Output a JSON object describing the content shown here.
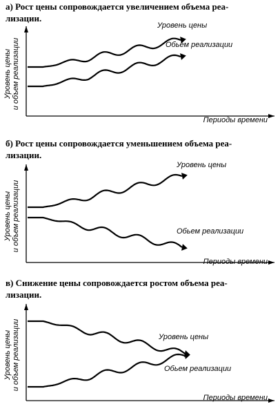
{
  "panels": [
    {
      "caption": [
        "а) Рост цены сопровождается увеличением объема реа-",
        "лизации."
      ],
      "y_axis_label": [
        "Уровень цены",
        "и объем реализации"
      ],
      "x_axis_label": "Периоды времени",
      "curves": [
        {
          "label": "Уровень цены"
        },
        {
          "label": "Обьем реализации"
        }
      ]
    },
    {
      "caption": [
        "б) Рост цены сопровождается уменьшением объема реа-",
        "лизации."
      ],
      "y_axis_label": [
        "Уровень цены",
        "и объем реализации"
      ],
      "x_axis_label": "Периоды времени",
      "curves": [
        {
          "label": "Уровень цены"
        },
        {
          "label": "Обьем реализации"
        }
      ]
    },
    {
      "caption": [
        "в) Снижение цены сопровождается ростом объема реа-",
        "лизации."
      ],
      "y_axis_label": [
        "Уровень цены",
        "и объем реализации"
      ],
      "x_axis_label": "Периоды времени",
      "curves": [
        {
          "label": "Уровень цены"
        },
        {
          "label": "Обьем реализации"
        }
      ]
    }
  ]
}
